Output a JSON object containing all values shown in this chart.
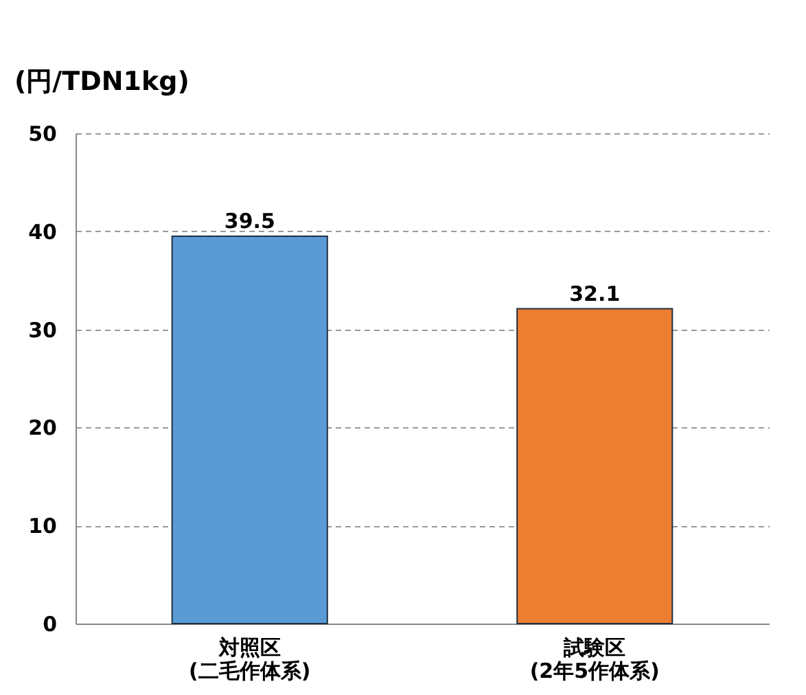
{
  "chart_data": {
    "type": "bar",
    "ylabel": "(円/TDN1kg)",
    "categories": [
      "対照区\n(二毛作体系)",
      "試験区\n(2年5作体系)"
    ],
    "values": [
      39.5,
      32.1
    ],
    "colors": [
      "#5b9bd5",
      "#ed7d31"
    ],
    "ylim": [
      0,
      50
    ],
    "yticks": [
      0,
      10,
      20,
      30,
      40,
      50
    ],
    "grid": "y",
    "data_labels": true
  }
}
